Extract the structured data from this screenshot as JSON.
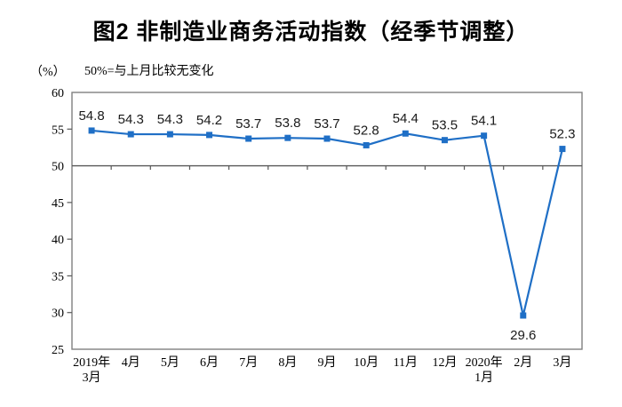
{
  "header": {
    "title": "图2 非制造业商务活动指数（经季节调整）"
  },
  "chart_data": {
    "type": "line",
    "title": "图2 非制造业商务活动指数（经季节调整）",
    "unit_label": "（%）",
    "note": "50%=与上月比较无变化",
    "categories": [
      "2019年\n3月",
      "4月",
      "5月",
      "6月",
      "7月",
      "8月",
      "9月",
      "10月",
      "11月",
      "12月",
      "2020年\n1月",
      "2月",
      "3月"
    ],
    "values": [
      54.8,
      54.3,
      54.3,
      54.2,
      53.7,
      53.8,
      53.7,
      52.8,
      54.4,
      53.5,
      54.1,
      29.6,
      52.3
    ],
    "ylabel": "（%）",
    "ylim": [
      25,
      60
    ],
    "ytick_step": 5,
    "yticks": [
      25,
      30,
      35,
      40,
      45,
      50,
      55,
      60
    ],
    "reference_line": 50,
    "grid": false,
    "legend": "none",
    "marker": "square",
    "colors": {
      "series_line": "#1f6fc6",
      "reference_line": "#595959",
      "plot_frame": "#808080",
      "tick": "#595959",
      "text": "#000000"
    }
  }
}
